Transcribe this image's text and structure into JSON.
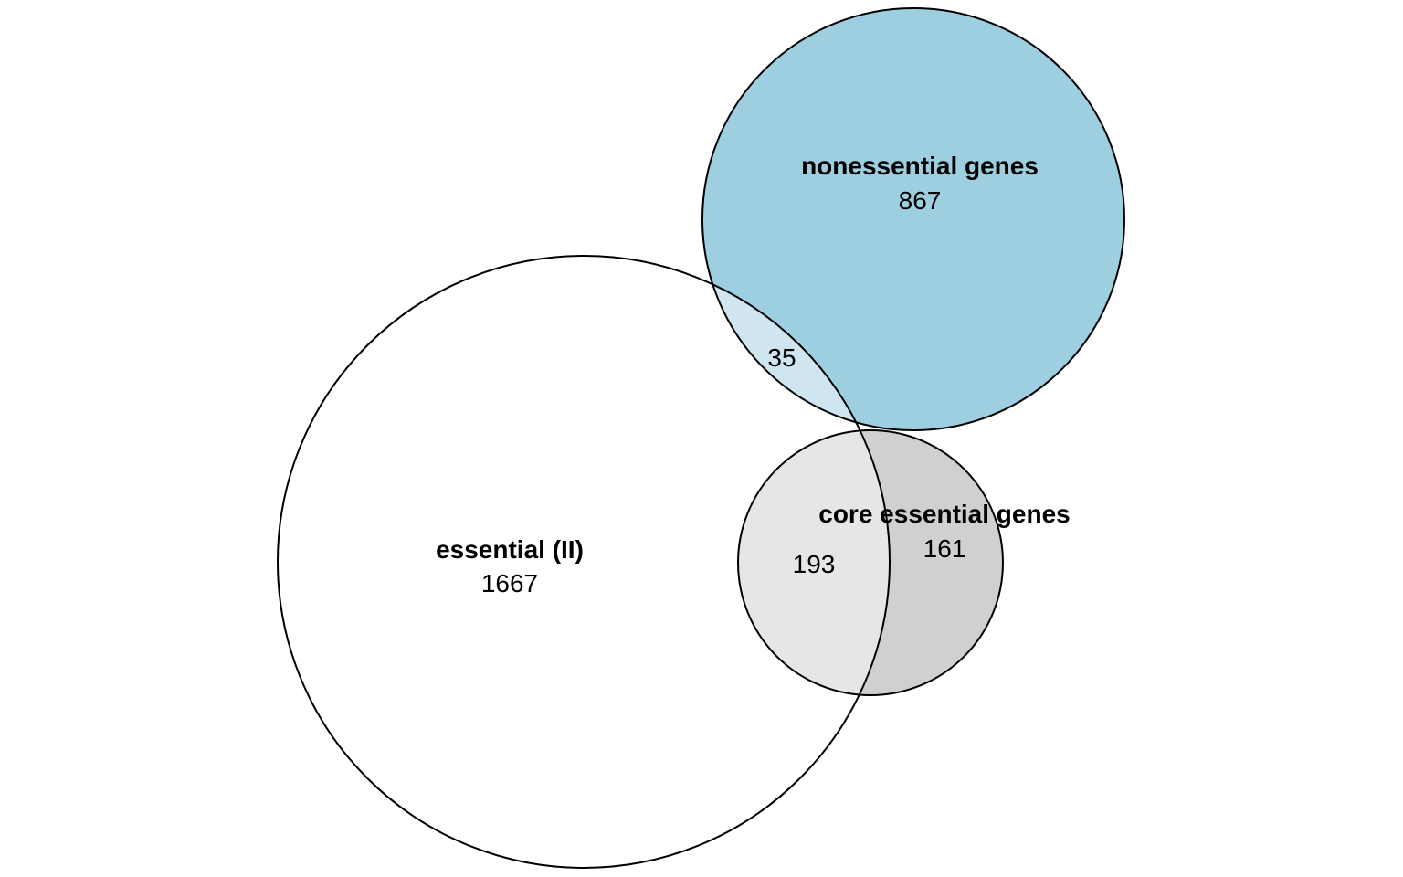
{
  "diagram": {
    "type": "venn",
    "sets": [
      {
        "id": "nonessential",
        "label": "nonessential genes",
        "count": "867",
        "fill": "#9ecfe0"
      },
      {
        "id": "essential",
        "label": "essential (II)",
        "count": "1667",
        "fill": "#ffffff"
      },
      {
        "id": "core",
        "label": "core essential genes",
        "count": "161",
        "fill": "#d0d0d0"
      }
    ],
    "intersections": [
      {
        "sets": [
          "essential",
          "nonessential"
        ],
        "count": "35",
        "fill": "#cfe5ef"
      },
      {
        "sets": [
          "essential",
          "core"
        ],
        "count": "193",
        "fill": "#e6e6e6"
      }
    ]
  }
}
